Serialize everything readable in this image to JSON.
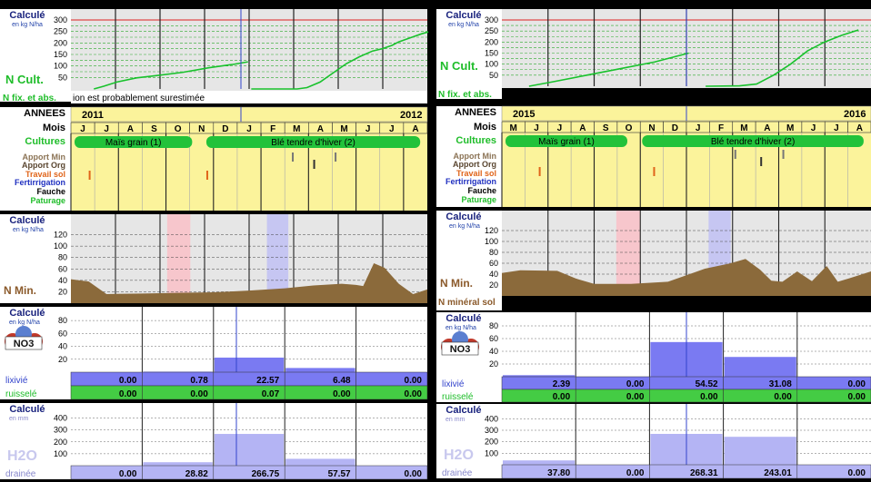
{
  "common": {
    "calcule": "Calculé",
    "unit_kgnha": "en kg N/ha",
    "unit_mm": "en mm",
    "annees": "ANNEES",
    "mois": "Mois",
    "cultures": "Cultures",
    "apport_min": "Apport Min",
    "apport_org": "Apport Org",
    "travail_sol": "Travail sol",
    "fertirrigation": "Fertirrigation",
    "fauche": "Fauche",
    "paturage": "Paturage",
    "n_cult": "N Cult.",
    "n_min": "N Min.",
    "lixivie": "lixivié",
    "ruissele": "ruisselé",
    "h2o": "H2O",
    "draine": "drainée",
    "no3": "NO3",
    "ncult_ticks": [
      "300",
      "250",
      "200",
      "150",
      "100",
      "50"
    ],
    "nmin_ticks": [
      "120",
      "100",
      "80",
      "60",
      "40",
      "20"
    ],
    "no3_ticks": [
      "80",
      "60",
      "40",
      "20"
    ],
    "h2o_ticks": [
      "400",
      "300",
      "200",
      "100"
    ],
    "colors": {
      "crop_bar": "#22c23a",
      "chart_bg": "#e6e6e6",
      "strip_bg": "#fbf39b",
      "soil": "#8b6a3b",
      "lix_bar": "#7a7af2",
      "drain_bar": "#b4b4f4",
      "ruis_bar": "#44cc44"
    }
  },
  "panels": [
    {
      "id": "left",
      "ncult_bottom_note": "ion est probablement surestimée",
      "years": [
        "2011",
        "2012"
      ],
      "months": [
        "J",
        "J",
        "A",
        "S",
        "O",
        "N",
        "D",
        "J",
        "F",
        "M",
        "A",
        "M",
        "J",
        "J",
        "A"
      ],
      "crops": [
        "Maïs grain (1)",
        "Blé tendre d'hiver (2)"
      ],
      "lixivie": [
        "0.00",
        "0.78",
        "22.57",
        "6.48",
        "0.00"
      ],
      "ruissele": [
        "0.00",
        "0.00",
        "0.07",
        "0.00",
        "0.00"
      ],
      "draine": [
        "0.00",
        "28.82",
        "266.75",
        "57.57",
        "0.00"
      ],
      "lix_bar_values": [
        0,
        0.78,
        22.57,
        6.48,
        0
      ],
      "drain_bar_values": [
        0,
        28.82,
        266.75,
        57.57,
        0
      ],
      "ncult_series": [
        [
          [
            0.07,
            0
          ],
          [
            0.1,
            12
          ],
          [
            0.14,
            30
          ],
          [
            0.2,
            48
          ],
          [
            0.26,
            58
          ],
          [
            0.34,
            72
          ],
          [
            0.42,
            92
          ],
          [
            0.5,
            108
          ],
          [
            0.54,
            118
          ]
        ],
        [
          [
            0.55,
            0
          ],
          [
            0.69,
            0
          ],
          [
            0.72,
            6
          ],
          [
            0.76,
            30
          ],
          [
            0.8,
            70
          ],
          [
            0.84,
            110
          ],
          [
            0.88,
            140
          ],
          [
            0.92,
            165
          ],
          [
            0.95,
            175
          ],
          [
            0.98,
            190
          ],
          [
            1.0,
            205
          ],
          [
            1.04,
            225
          ],
          [
            1.07,
            240
          ],
          [
            1.09,
            248
          ]
        ]
      ],
      "nmin_series": [
        [
          0,
          42
        ],
        [
          0.05,
          38
        ],
        [
          0.1,
          16
        ],
        [
          0.2,
          17
        ],
        [
          0.3,
          18
        ],
        [
          0.4,
          19
        ],
        [
          0.5,
          22
        ],
        [
          0.6,
          26
        ],
        [
          0.68,
          31
        ],
        [
          0.76,
          34
        ],
        [
          0.8,
          32
        ],
        [
          0.82,
          30
        ],
        [
          0.85,
          70
        ],
        [
          0.88,
          62
        ],
        [
          0.92,
          34
        ],
        [
          0.96,
          16
        ],
        [
          1.0,
          24
        ],
        [
          1.03,
          46
        ]
      ]
    },
    {
      "id": "right",
      "ncult_bottom_note": "",
      "years": [
        "2015",
        "2016"
      ],
      "months": [
        "M",
        "J",
        "J",
        "A",
        "S",
        "O",
        "N",
        "D",
        "J",
        "F",
        "M",
        "A",
        "M",
        "J",
        "J",
        "A"
      ],
      "crops": [
        "Maïs grain (1)",
        "Blé tendre d'hiver (2)"
      ],
      "n_fix_label": "N fix. et abs.",
      "n_mineral_sol": "N minéral sol",
      "lixivie": [
        "2.39",
        "0.00",
        "54.52",
        "31.08",
        "0.00"
      ],
      "ruissele": [
        "0.00",
        "0.00",
        "0.00",
        "0.00",
        "0.00"
      ],
      "draine": [
        "37.80",
        "0.00",
        "268.31",
        "243.01",
        "0.00"
      ],
      "lix_bar_values": [
        2.39,
        0,
        54.52,
        31.08,
        0
      ],
      "drain_bar_values": [
        37.8,
        0,
        268.31,
        243.01,
        0
      ],
      "ncult_series": [
        [
          [
            0.08,
            0
          ],
          [
            0.15,
            20
          ],
          [
            0.25,
            50
          ],
          [
            0.35,
            80
          ],
          [
            0.45,
            110
          ],
          [
            0.5,
            130
          ],
          [
            0.55,
            150
          ]
        ],
        [
          [
            0.6,
            0
          ],
          [
            0.7,
            2
          ],
          [
            0.75,
            10
          ],
          [
            0.8,
            50
          ],
          [
            0.85,
            100
          ],
          [
            0.9,
            160
          ],
          [
            0.95,
            200
          ],
          [
            1.0,
            230
          ],
          [
            1.05,
            255
          ]
        ]
      ],
      "nmin_series": [
        [
          0,
          42
        ],
        [
          0.05,
          47
        ],
        [
          0.15,
          46
        ],
        [
          0.2,
          32
        ],
        [
          0.25,
          22
        ],
        [
          0.35,
          22
        ],
        [
          0.45,
          26
        ],
        [
          0.55,
          50
        ],
        [
          0.62,
          60
        ],
        [
          0.66,
          68
        ],
        [
          0.7,
          48
        ],
        [
          0.73,
          28
        ],
        [
          0.76,
          26
        ],
        [
          0.8,
          45
        ],
        [
          0.82,
          36
        ],
        [
          0.84,
          27
        ],
        [
          0.88,
          55
        ],
        [
          0.91,
          26
        ],
        [
          0.94,
          32
        ],
        [
          1.0,
          45
        ]
      ]
    }
  ]
}
